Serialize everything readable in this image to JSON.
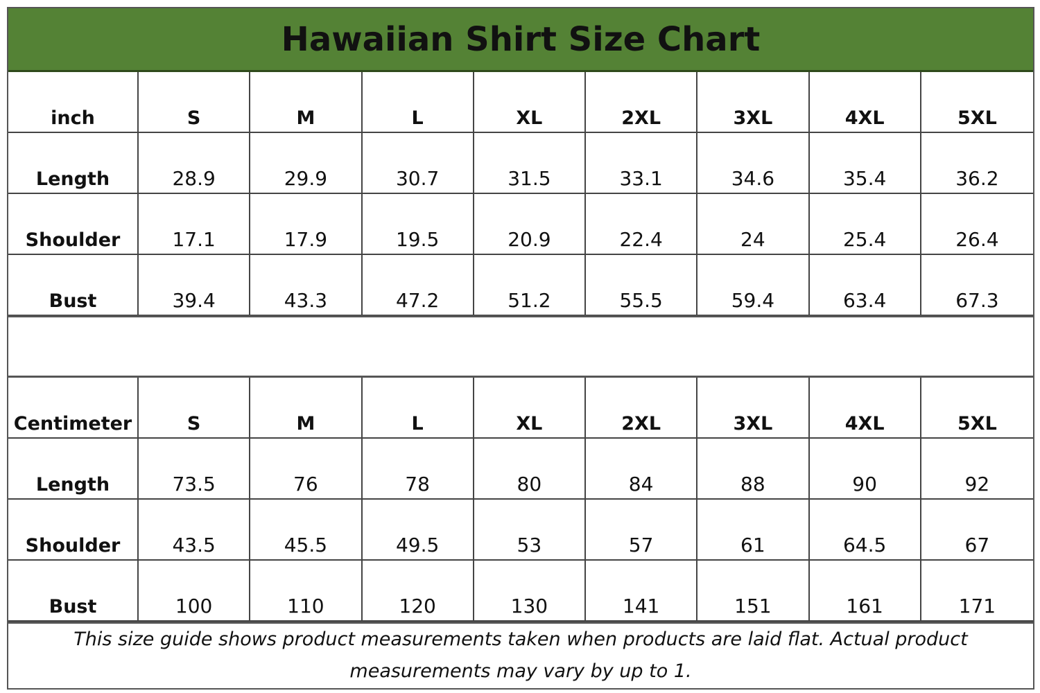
{
  "title": "Hawaiian Shirt Size Chart",
  "sizes": [
    "S",
    "M",
    "L",
    "XL",
    "2XL",
    "3XL",
    "4XL",
    "5XL"
  ],
  "tables": [
    {
      "unit": "inch",
      "rows": [
        {
          "label": "Length",
          "values": [
            "28.9",
            "29.9",
            "30.7",
            "31.5",
            "33.1",
            "34.6",
            "35.4",
            "36.2"
          ]
        },
        {
          "label": "Shoulder",
          "values": [
            "17.1",
            "17.9",
            "19.5",
            "20.9",
            "22.4",
            "24",
            "25.4",
            "26.4"
          ]
        },
        {
          "label": "Bust",
          "values": [
            "39.4",
            "43.3",
            "47.2",
            "51.2",
            "55.5",
            "59.4",
            "63.4",
            "67.3"
          ]
        }
      ]
    },
    {
      "unit": "Centimeter",
      "rows": [
        {
          "label": "Length",
          "values": [
            "73.5",
            "76",
            "78",
            "80",
            "84",
            "88",
            "90",
            "92"
          ]
        },
        {
          "label": "Shoulder",
          "values": [
            "43.5",
            "45.5",
            "49.5",
            "53",
            "57",
            "61",
            "64.5",
            "67"
          ]
        },
        {
          "label": "Bust",
          "values": [
            "100",
            "110",
            "120",
            "130",
            "141",
            "151",
            "161",
            "171"
          ]
        }
      ]
    }
  ],
  "footer": "This size guide shows product measurements taken when products are laid flat. Actual product measurements may vary by up to 1.",
  "colors": {
    "title_bg": "#548235",
    "border": "#444444"
  }
}
